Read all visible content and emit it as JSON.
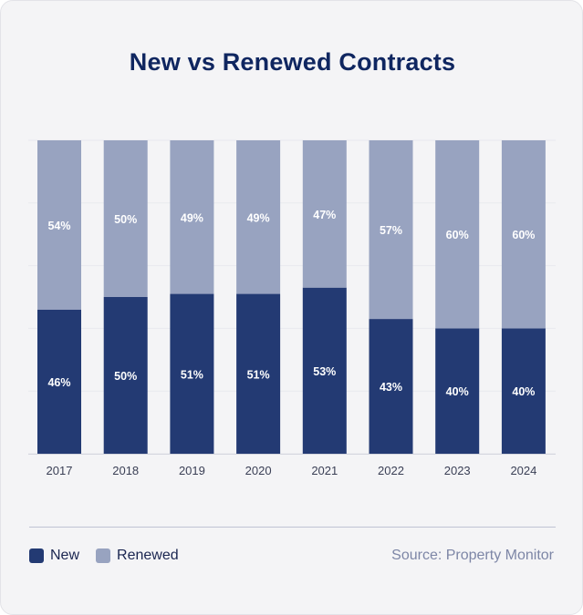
{
  "title": "New vs Renewed Contracts",
  "source": "Source: Property Monitor",
  "colors": {
    "new": "#233a73",
    "renewed": "#98a3c0"
  },
  "chart_data": {
    "type": "bar",
    "stacked": true,
    "percent": true,
    "title": "New vs Renewed Contracts",
    "categories": [
      "2017",
      "2018",
      "2019",
      "2020",
      "2021",
      "2022",
      "2023",
      "2024"
    ],
    "series": [
      {
        "name": "New",
        "values": [
          46,
          50,
          51,
          51,
          53,
          43,
          40,
          40
        ],
        "labels": [
          "46%",
          "50%",
          "51%",
          "51%",
          "53%",
          "43%",
          "40%",
          "40%"
        ]
      },
      {
        "name": "Renewed",
        "values": [
          54,
          50,
          49,
          49,
          47,
          57,
          60,
          60
        ],
        "labels": [
          "54%",
          "50%",
          "49%",
          "49%",
          "47%",
          "57%",
          "60%",
          "60%"
        ]
      }
    ],
    "ylim": [
      0,
      100
    ],
    "grid": true,
    "legend": "bottom-left"
  }
}
